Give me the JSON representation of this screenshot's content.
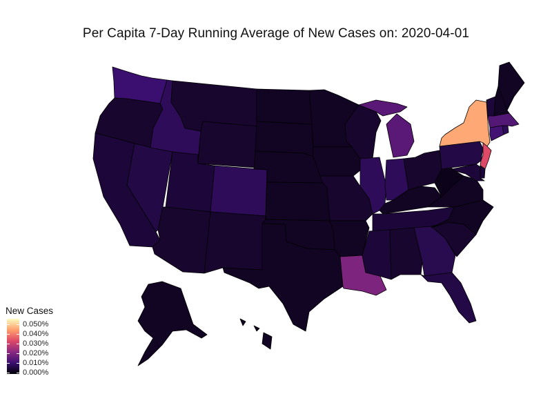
{
  "title": "Per Capita 7-Day Running Average of New Cases on: 2020-04-01",
  "legend": {
    "title": "New Cases",
    "labels": [
      "0.050%",
      "0.040%",
      "0.030%",
      "0.020%",
      "0.010%",
      "0.000%"
    ],
    "scale_min": 0,
    "scale_max": 0.05,
    "colors": [
      "#000004",
      "#3b0f70",
      "#8c2981",
      "#de4968",
      "#fe9f6d",
      "#fcfdbf"
    ]
  },
  "states": [
    {
      "code": "WA",
      "value": 0.01
    },
    {
      "code": "OR",
      "value": 0.004
    },
    {
      "code": "CA",
      "value": 0.005
    },
    {
      "code": "NV",
      "value": 0.006
    },
    {
      "code": "ID",
      "value": 0.008
    },
    {
      "code": "MT",
      "value": 0.004
    },
    {
      "code": "WY",
      "value": 0.004
    },
    {
      "code": "UT",
      "value": 0.005
    },
    {
      "code": "AZ",
      "value": 0.004
    },
    {
      "code": "CO",
      "value": 0.008
    },
    {
      "code": "NM",
      "value": 0.004
    },
    {
      "code": "ND",
      "value": 0.003
    },
    {
      "code": "SD",
      "value": 0.003
    },
    {
      "code": "NE",
      "value": 0.003
    },
    {
      "code": "KS",
      "value": 0.003
    },
    {
      "code": "OK",
      "value": 0.003
    },
    {
      "code": "TX",
      "value": 0.003
    },
    {
      "code": "MN",
      "value": 0.003
    },
    {
      "code": "IA",
      "value": 0.003
    },
    {
      "code": "MO",
      "value": 0.004
    },
    {
      "code": "AR",
      "value": 0.003
    },
    {
      "code": "LA",
      "value": 0.018
    },
    {
      "code": "WI",
      "value": 0.004
    },
    {
      "code": "IL",
      "value": 0.008
    },
    {
      "code": "MI",
      "value": 0.014
    },
    {
      "code": "IN",
      "value": 0.008
    },
    {
      "code": "OH",
      "value": 0.004
    },
    {
      "code": "KY",
      "value": 0.003
    },
    {
      "code": "TN",
      "value": 0.005
    },
    {
      "code": "MS",
      "value": 0.005
    },
    {
      "code": "AL",
      "value": 0.004
    },
    {
      "code": "GA",
      "value": 0.007
    },
    {
      "code": "FL",
      "value": 0.006
    },
    {
      "code": "SC",
      "value": 0.004
    },
    {
      "code": "NC",
      "value": 0.003
    },
    {
      "code": "VA",
      "value": 0.003
    },
    {
      "code": "WV",
      "value": 0.002
    },
    {
      "code": "PA",
      "value": 0.006
    },
    {
      "code": "NY",
      "value": 0.041
    },
    {
      "code": "NJ",
      "value": 0.03
    },
    {
      "code": "DE",
      "value": 0.005
    },
    {
      "code": "MD",
      "value": 0.005
    },
    {
      "code": "CT",
      "value": 0.011
    },
    {
      "code": "RI",
      "value": 0.008
    },
    {
      "code": "MA",
      "value": 0.013
    },
    {
      "code": "VT",
      "value": 0.005
    },
    {
      "code": "NH",
      "value": 0.003
    },
    {
      "code": "ME",
      "value": 0.003
    },
    {
      "code": "AK",
      "value": 0.003
    },
    {
      "code": "HI",
      "value": 0.003
    }
  ]
}
